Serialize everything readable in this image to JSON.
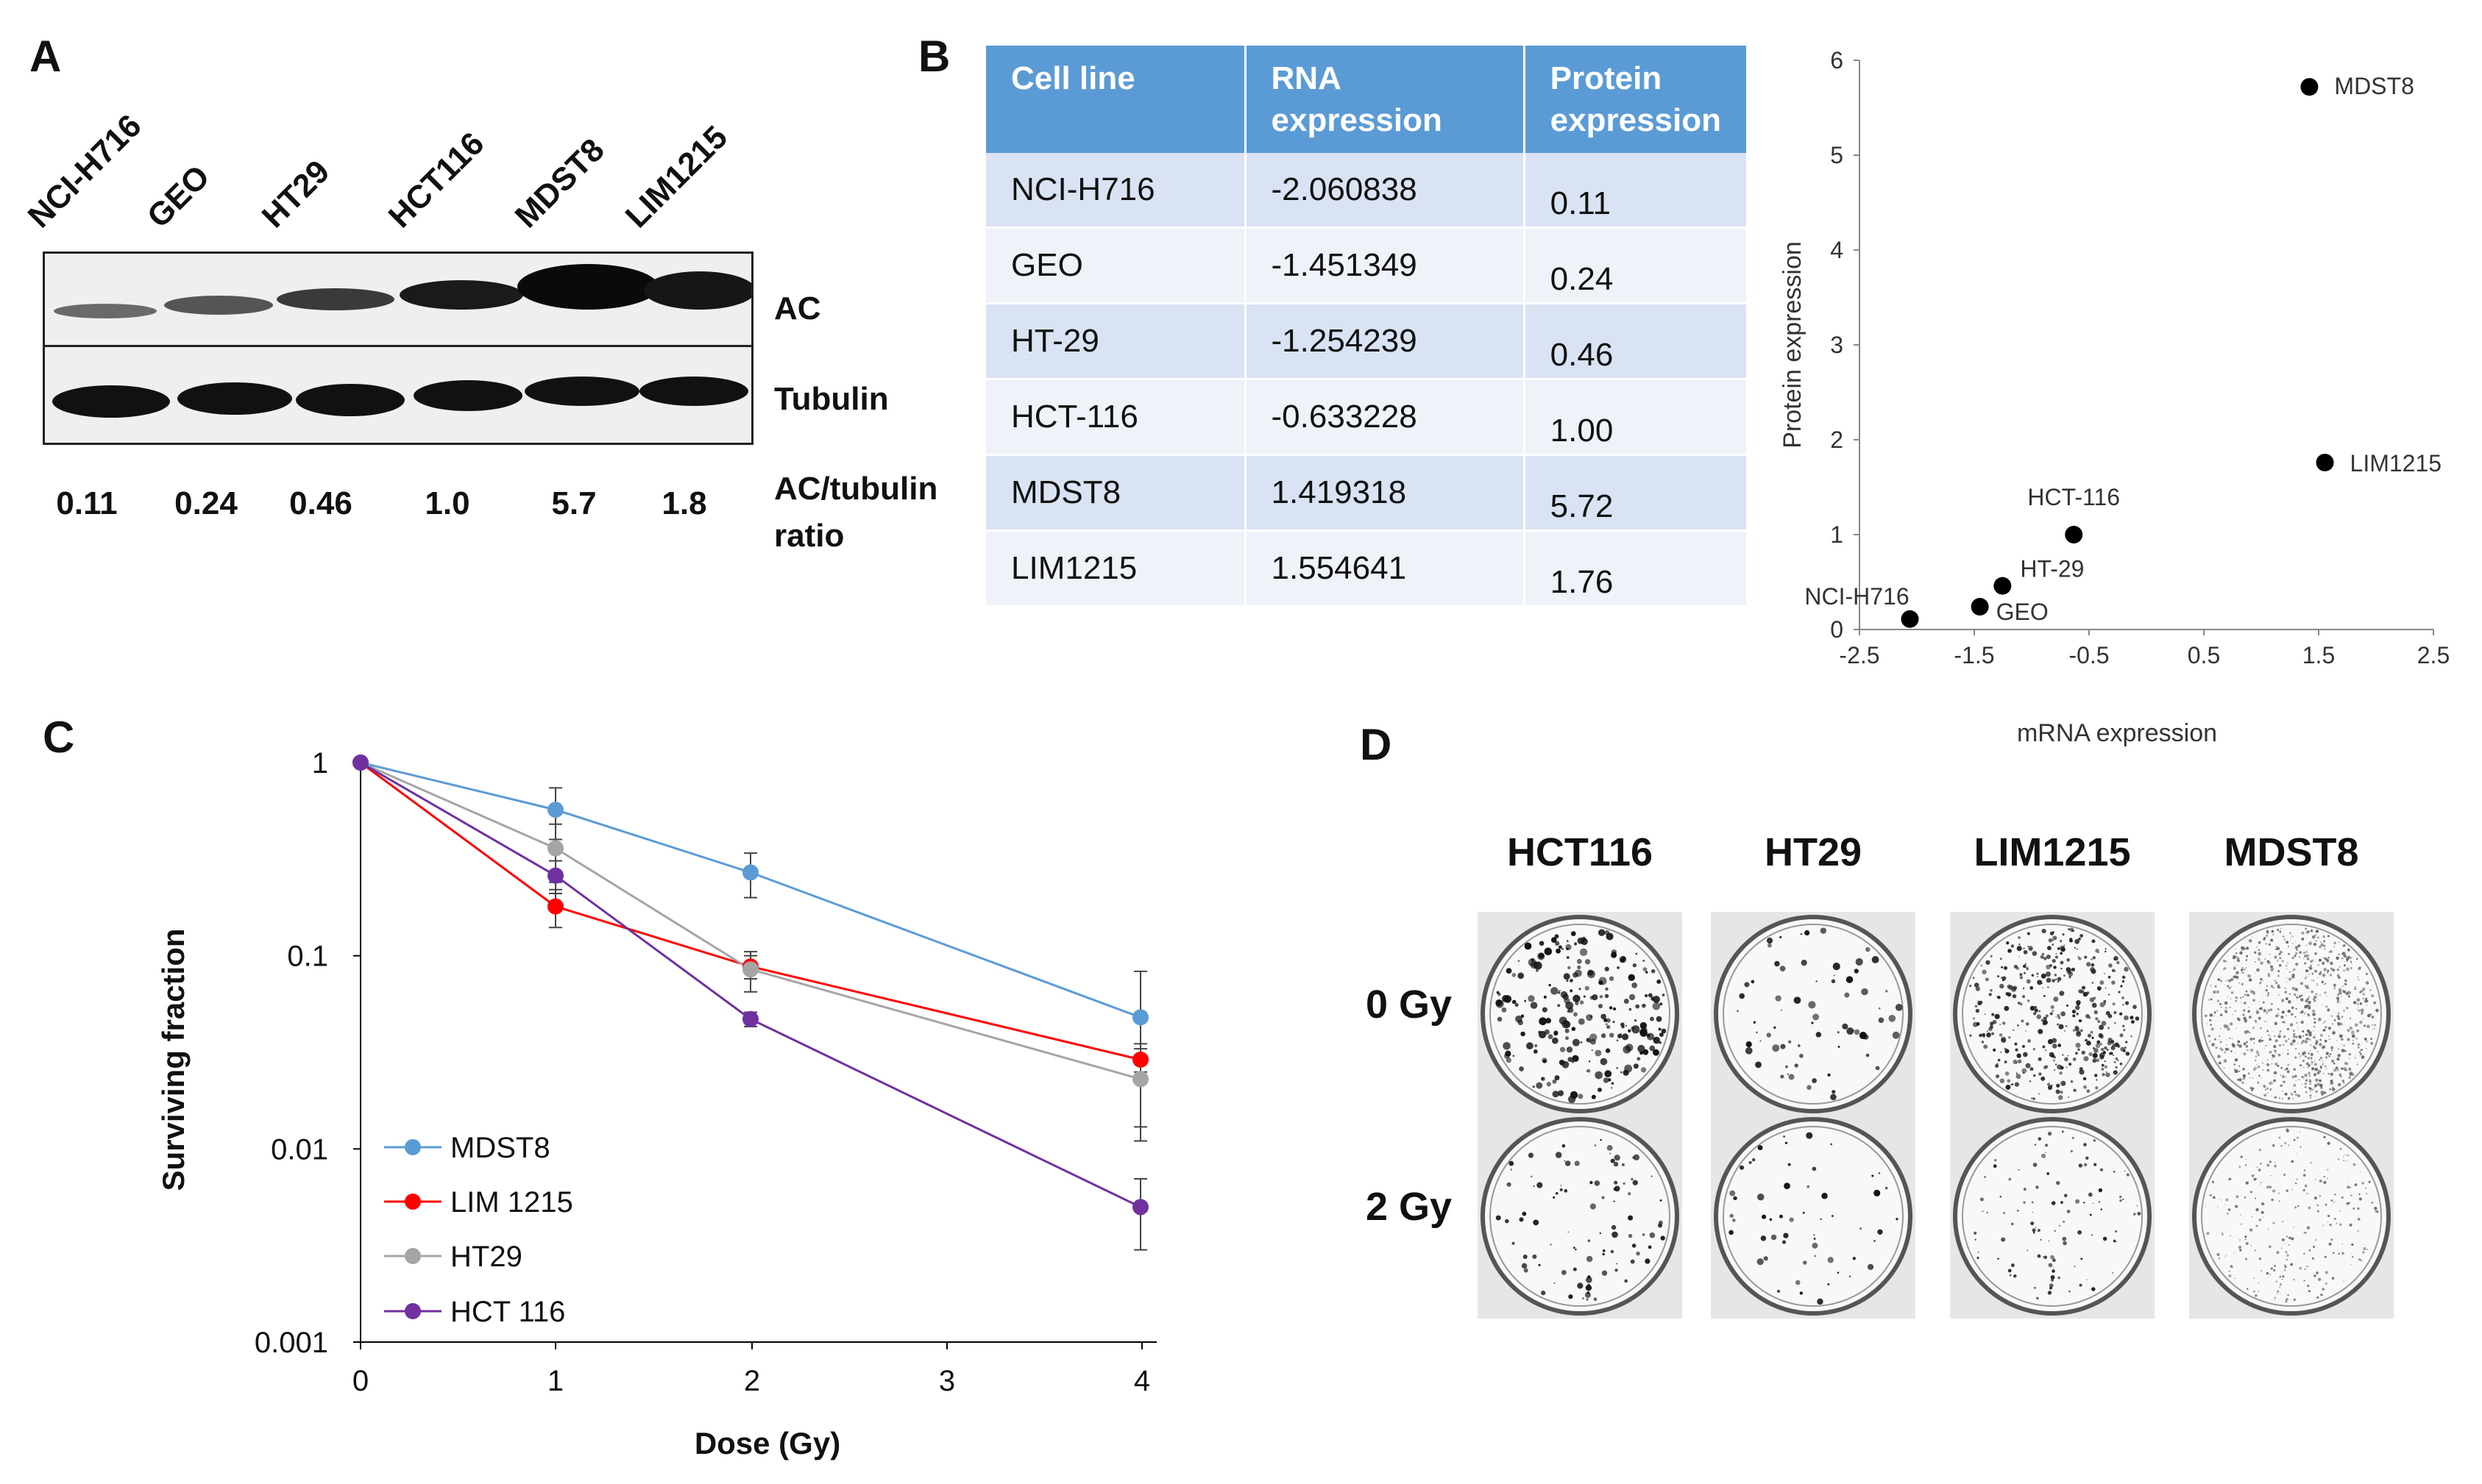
{
  "panel_letters": {
    "a": "A",
    "b": "B",
    "c": "C",
    "d": "D"
  },
  "panel_a": {
    "lanes": [
      "NCI-H716",
      "GEO",
      "HT29",
      "HCT116",
      "MDST8",
      "LIM1215"
    ],
    "rows": {
      "ac": "AC",
      "tubulin": "Tubulin",
      "ratio_line1": "AC/tubulin",
      "ratio_line2": "ratio"
    },
    "ratios": [
      "0.11",
      "0.24",
      "0.46",
      "1.0",
      "5.7",
      "1.8"
    ]
  },
  "panel_b": {
    "table": {
      "headers": {
        "cell_line": "Cell line",
        "rna_1": "RNA",
        "rna_2": "expression",
        "prot_1": "Protein",
        "prot_2": "expression"
      },
      "rows": [
        {
          "cell": "NCI-H716",
          "rna": "-2.060838",
          "protein": "0.11"
        },
        {
          "cell": "GEO",
          "rna": "-1.451349",
          "protein": "0.24"
        },
        {
          "cell": "HT-29",
          "rna": "-1.254239",
          "protein": "0.46"
        },
        {
          "cell": "HCT-116",
          "rna": "-0.633228",
          "protein": "1.00"
        },
        {
          "cell": "MDST8",
          "rna": "1.419318",
          "protein": "5.72"
        },
        {
          "cell": "LIM1215",
          "rna": "1.554641",
          "protein": "1.76"
        }
      ]
    }
  },
  "panel_c_legend": [
    "MDST8",
    "LIM 1215",
    "HT29",
    "HCT 116"
  ],
  "panel_d": {
    "columns": [
      "HCT116",
      "HT29",
      "LIM1215",
      "MDST8"
    ],
    "rows": [
      "0 Gy",
      "2 Gy"
    ]
  },
  "chart_data": [
    {
      "type": "scatter",
      "title": "",
      "xlabel": "mRNA expression",
      "ylabel": "Protein expression",
      "xlim": [
        -2.5,
        2.5
      ],
      "ylim": [
        0,
        6
      ],
      "xticks": [
        "-2.5",
        "-1.5",
        "-0.5",
        "0.5",
        "1.5",
        "2.5"
      ],
      "yticks": [
        "0",
        "1",
        "2",
        "3",
        "4",
        "5",
        "6"
      ],
      "points": [
        {
          "label": "NCI-H716",
          "x": -2.060838,
          "y": 0.11
        },
        {
          "label": "GEO",
          "x": -1.451349,
          "y": 0.24
        },
        {
          "label": "HT-29",
          "x": -1.254239,
          "y": 0.46
        },
        {
          "label": "HCT-116",
          "x": -0.633228,
          "y": 1.0
        },
        {
          "label": "MDST8",
          "x": 1.419318,
          "y": 5.72
        },
        {
          "label": "LIM1215",
          "x": 1.554641,
          "y": 1.76
        }
      ],
      "point_color": "#000000"
    },
    {
      "type": "line",
      "title": "",
      "xlabel": "Dose (Gy)",
      "ylabel": "Surviving fraction",
      "yscale": "log",
      "ylim": [
        0.001,
        1
      ],
      "categories": [
        "0",
        "1",
        "2",
        "3",
        "4"
      ],
      "yticks": [
        "1",
        "0.1",
        "0.01",
        "0.001"
      ],
      "legend": "bottom-left",
      "series": [
        {
          "name": "MDST8",
          "color": "#5b9bd5",
          "x": [
            0,
            1,
            2,
            4
          ],
          "values": [
            1,
            0.57,
            0.27,
            0.048
          ],
          "err": [
            0,
            0.17,
            0.07,
            0.035
          ]
        },
        {
          "name": "LIM 1215",
          "color": "#ff0000",
          "x": [
            0,
            1,
            2,
            4
          ],
          "values": [
            1,
            0.18,
            0.088,
            0.029
          ],
          "err": [
            0,
            0.04,
            0.012,
            0.004
          ]
        },
        {
          "name": "HT29",
          "color": "#a5a5a5",
          "x": [
            0,
            1,
            2,
            4
          ],
          "values": [
            1,
            0.36,
            0.085,
            0.023
          ],
          "err": [
            0,
            0.12,
            0.02,
            0.012
          ]
        },
        {
          "name": "HCT 116",
          "color": "#7030a0",
          "x": [
            0,
            1,
            2,
            4
          ],
          "values": [
            1,
            0.26,
            0.047,
            0.005
          ],
          "err": [
            0,
            0.05,
            0.004,
            0.002
          ]
        }
      ]
    }
  ]
}
